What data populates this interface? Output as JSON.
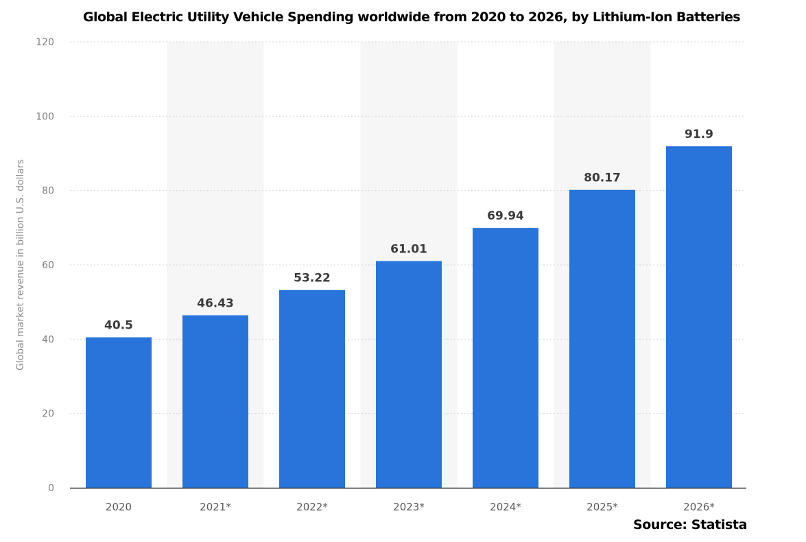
{
  "chart_data": {
    "type": "bar",
    "title": "Global Electric Utility Vehicle Spending worldwide from 2020 to 2026, by Lithium-Ion Batteries",
    "source": "Source: Statista",
    "xlabel": "",
    "ylabel": "Global market revenue in billion U.S. dollars",
    "categories": [
      "2020",
      "2021*",
      "2022*",
      "2023*",
      "2024*",
      "2025*",
      "2026*"
    ],
    "values": [
      40.5,
      46.43,
      53.22,
      61.01,
      69.94,
      80.17,
      91.9
    ],
    "value_labels": [
      "40.5",
      "46.43",
      "53.22",
      "61.01",
      "69.94",
      "80.17",
      "91.9"
    ],
    "ylim": [
      0,
      120
    ],
    "yticks": [
      0,
      20,
      40,
      60,
      80,
      100,
      120
    ],
    "grid": true,
    "legend": "none",
    "colors": {
      "bar": "#2874DB",
      "alt_band": "#F6F6F6",
      "grid": "#D4D4D4",
      "axis": "#333333"
    }
  }
}
